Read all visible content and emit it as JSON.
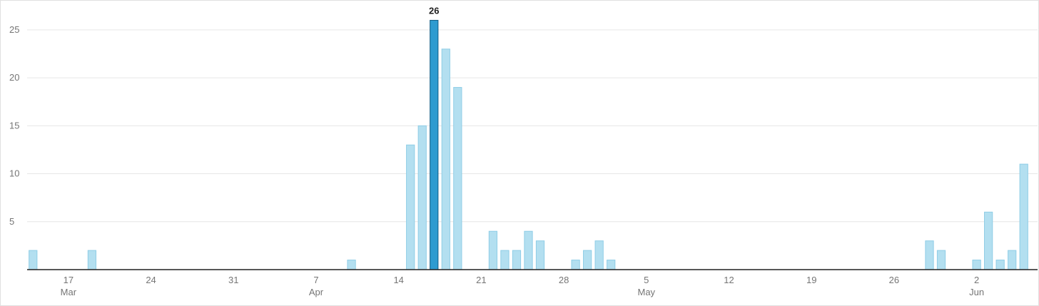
{
  "chart_data": {
    "type": "bar",
    "title": "",
    "xlabel": "",
    "ylabel": "",
    "ylim": [
      0,
      27
    ],
    "grid": true,
    "x_start": "2024-03-14",
    "x_end": "2024-06-06",
    "y_ticks": [
      5,
      10,
      15,
      20,
      25
    ],
    "x_ticks": [
      {
        "date": "2024-03-17",
        "label": "17",
        "sublabel": "Mar"
      },
      {
        "date": "2024-03-24",
        "label": "24",
        "sublabel": ""
      },
      {
        "date": "2024-03-31",
        "label": "31",
        "sublabel": ""
      },
      {
        "date": "2024-04-07",
        "label": "7",
        "sublabel": "Apr"
      },
      {
        "date": "2024-04-14",
        "label": "14",
        "sublabel": ""
      },
      {
        "date": "2024-04-21",
        "label": "21",
        "sublabel": ""
      },
      {
        "date": "2024-04-28",
        "label": "28",
        "sublabel": ""
      },
      {
        "date": "2024-05-05",
        "label": "5",
        "sublabel": "May"
      },
      {
        "date": "2024-05-12",
        "label": "12",
        "sublabel": ""
      },
      {
        "date": "2024-05-19",
        "label": "19",
        "sublabel": ""
      },
      {
        "date": "2024-05-26",
        "label": "26",
        "sublabel": ""
      },
      {
        "date": "2024-06-02",
        "label": "2",
        "sublabel": "Jun"
      }
    ],
    "bars": [
      {
        "date": "2024-03-14",
        "value": 2
      },
      {
        "date": "2024-03-19",
        "value": 2
      },
      {
        "date": "2024-04-10",
        "value": 1
      },
      {
        "date": "2024-04-15",
        "value": 13
      },
      {
        "date": "2024-04-16",
        "value": 15
      },
      {
        "date": "2024-04-17",
        "value": 26,
        "highlighted": true,
        "label": "26"
      },
      {
        "date": "2024-04-18",
        "value": 23
      },
      {
        "date": "2024-04-19",
        "value": 19
      },
      {
        "date": "2024-04-22",
        "value": 4
      },
      {
        "date": "2024-04-23",
        "value": 2
      },
      {
        "date": "2024-04-24",
        "value": 2
      },
      {
        "date": "2024-04-25",
        "value": 4
      },
      {
        "date": "2024-04-26",
        "value": 3
      },
      {
        "date": "2024-04-29",
        "value": 1
      },
      {
        "date": "2024-04-30",
        "value": 2
      },
      {
        "date": "2024-05-01",
        "value": 3
      },
      {
        "date": "2024-05-02",
        "value": 1
      },
      {
        "date": "2024-05-29",
        "value": 3
      },
      {
        "date": "2024-05-30",
        "value": 2
      },
      {
        "date": "2024-06-02",
        "value": 1
      },
      {
        "date": "2024-06-03",
        "value": 6
      },
      {
        "date": "2024-06-04",
        "value": 1
      },
      {
        "date": "2024-06-05",
        "value": 2
      },
      {
        "date": "2024-06-06",
        "value": 11
      }
    ],
    "colors": {
      "bar": "#b3dff0",
      "bar_border": "#8fcde6",
      "bar_highlight": "#2e9bd0",
      "bar_highlight_border": "#0f5c85",
      "grid": "#e6e6e6",
      "axis": "#212121"
    }
  }
}
